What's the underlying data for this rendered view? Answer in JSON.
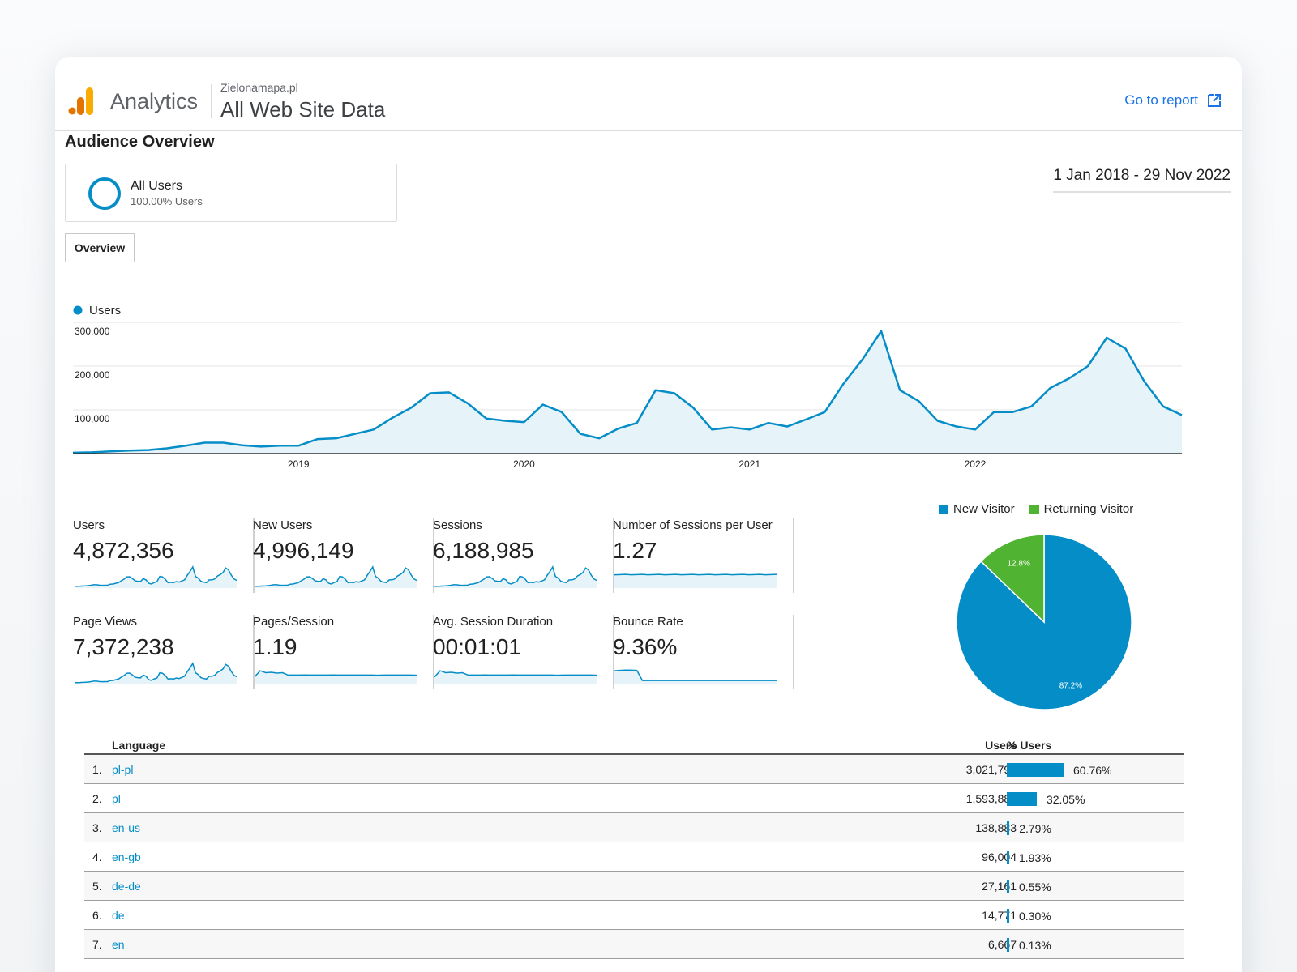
{
  "header": {
    "app_name": "Analytics",
    "account": "Zielonamapa.pl",
    "property": "All Web Site Data",
    "go_to_report": "Go to report"
  },
  "page_title": "Audience Overview",
  "segment": {
    "name": "All Users",
    "subtitle": "100.00% Users"
  },
  "date_range": "1 Jan 2018 - 29 Nov 2022",
  "tabs": [
    {
      "label": "Overview"
    }
  ],
  "colors": {
    "series": "#058dc7",
    "new_visitor": "#058dc7",
    "returning_visitor": "#50b432",
    "link": "#1a73e8"
  },
  "chart_data": [
    {
      "type": "area",
      "legend": [
        "Users"
      ],
      "series": [
        {
          "name": "Users",
          "values": [
            2000,
            3000,
            5000,
            7000,
            8000,
            12000,
            18000,
            25000,
            25000,
            19000,
            16000,
            18000,
            18000,
            33000,
            35000,
            45000,
            55000,
            82000,
            105000,
            138000,
            140000,
            115000,
            80000,
            75000,
            72000,
            112000,
            95000,
            45000,
            35000,
            57000,
            70000,
            145000,
            138000,
            105000,
            55000,
            60000,
            55000,
            70000,
            62000,
            78000,
            95000,
            160000,
            215000,
            280000,
            145000,
            120000,
            75000,
            62000,
            55000,
            95000,
            95000,
            108000,
            150000,
            172000,
            200000,
            265000,
            240000,
            165000,
            108000,
            88000
          ]
        }
      ],
      "x_ticks": [
        "2019",
        "2020",
        "2021",
        "2022"
      ],
      "x_tick_index": [
        12,
        24,
        36,
        48
      ],
      "y_ticks": [
        "300,000",
        "200,000",
        "100,000"
      ],
      "y_tick_values": [
        300000,
        200000,
        100000
      ],
      "ylim": [
        0,
        300000
      ],
      "legend_position": "top-left"
    },
    {
      "type": "pie",
      "legend": [
        "New Visitor",
        "Returning Visitor"
      ],
      "values": [
        87.2,
        12.8
      ],
      "labels": [
        "87.2%",
        "12.8%"
      ],
      "legend_position": "top"
    }
  ],
  "metrics": [
    {
      "label": "Users",
      "value": "4,872,356",
      "spark": "traffic"
    },
    {
      "label": "New Users",
      "value": "4,996,149",
      "spark": "traffic"
    },
    {
      "label": "Sessions",
      "value": "6,188,985",
      "spark": "traffic"
    },
    {
      "label": "Number of Sessions per User",
      "value": "1.27",
      "spark": "flat"
    },
    {
      "label": "Page Views",
      "value": "7,372,238",
      "spark": "traffic"
    },
    {
      "label": "Pages/Session",
      "value": "1.19",
      "spark": "drop"
    },
    {
      "label": "Avg. Session Duration",
      "value": "00:01:01",
      "spark": "drop"
    },
    {
      "label": "Bounce Rate",
      "value": "9.36%",
      "spark": "cliff"
    }
  ],
  "language_table": {
    "headers": {
      "language": "Language",
      "users": "Users",
      "pct_users": "% Users"
    },
    "rows": [
      {
        "idx": "1.",
        "lang": "pl-pl",
        "users": "3,021,798",
        "pct": "60.76%",
        "share": 60.76
      },
      {
        "idx": "2.",
        "lang": "pl",
        "users": "1,593,884",
        "pct": "32.05%",
        "share": 32.05
      },
      {
        "idx": "3.",
        "lang": "en-us",
        "users": "138,883",
        "pct": "2.79%",
        "share": 2.79
      },
      {
        "idx": "4.",
        "lang": "en-gb",
        "users": "96,004",
        "pct": "1.93%",
        "share": 1.93
      },
      {
        "idx": "5.",
        "lang": "de-de",
        "users": "27,161",
        "pct": "0.55%",
        "share": 0.55
      },
      {
        "idx": "6.",
        "lang": "de",
        "users": "14,771",
        "pct": "0.30%",
        "share": 0.3
      },
      {
        "idx": "7.",
        "lang": "en",
        "users": "6,667",
        "pct": "0.13%",
        "share": 0.13
      }
    ]
  }
}
